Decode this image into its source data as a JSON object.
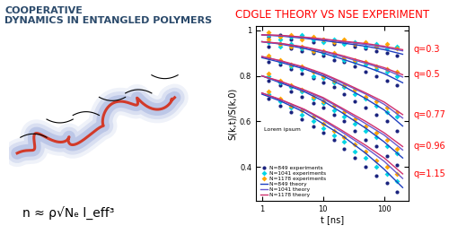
{
  "chart_data": {
    "type": "line",
    "title": "CDGLE THEORY VS NSE EXPERIMENT",
    "x_label": "t [ns]",
    "y_label": "S(k,t)/S(k,0)",
    "log": "x",
    "xlim": [
      0.8,
      250
    ],
    "xticks": [
      1,
      10,
      100
    ],
    "ylim": [
      0.25,
      1.02
    ],
    "yticks": [
      0.4,
      0.6,
      0.8,
      1
    ],
    "legend": "lower left",
    "annotations": [
      "Lorem ipsum"
    ],
    "groups": [
      "q=0.3",
      "q=0.5",
      "q=0.77",
      "q=0.96",
      "q=1.15"
    ],
    "series": [
      {
        "name": "N=849 experiments",
        "type": "scatter",
        "color": "#1a237e",
        "marker": "o",
        "x": [
          1.3,
          2,
          3,
          4.5,
          7,
          10,
          15,
          22,
          33,
          50,
          75,
          110,
          160
        ],
        "values": [
          [
            0.97,
            0.98,
            0.96,
            0.97,
            0.95,
            0.96,
            0.94,
            0.95,
            0.93,
            0.92,
            0.91,
            0.9,
            0.89
          ],
          [
            0.93,
            0.94,
            0.92,
            0.91,
            0.9,
            0.89,
            0.87,
            0.86,
            0.84,
            0.82,
            0.8,
            0.78,
            0.76
          ],
          [
            0.86,
            0.85,
            0.83,
            0.81,
            0.79,
            0.77,
            0.75,
            0.72,
            0.69,
            0.66,
            0.63,
            0.6,
            0.56
          ],
          [
            0.78,
            0.76,
            0.73,
            0.71,
            0.68,
            0.66,
            0.63,
            0.6,
            0.56,
            0.52,
            0.49,
            0.45,
            0.41
          ],
          [
            0.7,
            0.67,
            0.64,
            0.61,
            0.58,
            0.55,
            0.52,
            0.48,
            0.44,
            0.4,
            0.36,
            0.33,
            0.29
          ]
        ]
      },
      {
        "name": "N=1041 experiments",
        "type": "scatter",
        "color": "#00d5e5",
        "marker": "D",
        "x": [
          1.3,
          2,
          3,
          4.5,
          7,
          10,
          15,
          22,
          33,
          50,
          75,
          110,
          160
        ],
        "values": [
          [
            0.98,
            0.96,
            0.97,
            0.98,
            0.96,
            0.95,
            0.96,
            0.94,
            0.95,
            0.93,
            0.94,
            0.92,
            0.93
          ],
          [
            0.95,
            0.93,
            0.94,
            0.92,
            0.91,
            0.9,
            0.89,
            0.87,
            0.86,
            0.85,
            0.83,
            0.82,
            0.8
          ],
          [
            0.88,
            0.86,
            0.84,
            0.83,
            0.8,
            0.79,
            0.77,
            0.75,
            0.72,
            0.7,
            0.67,
            0.64,
            0.62
          ],
          [
            0.8,
            0.77,
            0.75,
            0.73,
            0.7,
            0.68,
            0.65,
            0.62,
            0.59,
            0.56,
            0.53,
            0.49,
            0.46
          ],
          [
            0.72,
            0.69,
            0.66,
            0.63,
            0.6,
            0.57,
            0.54,
            0.51,
            0.47,
            0.44,
            0.4,
            0.37,
            0.34
          ]
        ]
      },
      {
        "name": "N=1178 experiments",
        "type": "scatter",
        "color": "#ffa500",
        "marker": "D",
        "x": [
          1.3,
          2,
          3,
          4.5,
          7,
          10,
          15,
          22,
          33,
          50,
          75,
          110,
          160
        ],
        "values": [
          [
            0.99,
            0.97,
            0.98,
            0.96,
            0.97,
            0.96,
            0.95,
            0.96,
            0.94,
            0.95,
            0.93,
            0.94,
            0.92
          ],
          [
            0.96,
            0.94,
            0.93,
            0.93,
            0.91,
            0.91,
            0.9,
            0.88,
            0.87,
            0.86,
            0.84,
            0.83,
            0.82
          ],
          [
            0.89,
            0.87,
            0.85,
            0.84,
            0.82,
            0.8,
            0.78,
            0.76,
            0.74,
            0.71,
            0.69,
            0.66,
            0.64
          ],
          [
            0.81,
            0.78,
            0.76,
            0.74,
            0.71,
            0.69,
            0.67,
            0.64,
            0.61,
            0.58,
            0.55,
            0.52,
            0.48
          ],
          [
            0.73,
            0.7,
            0.67,
            0.65,
            0.62,
            0.59,
            0.56,
            0.53,
            0.5,
            0.47,
            0.43,
            0.4,
            0.37
          ]
        ]
      },
      {
        "name": "N=849 theory",
        "type": "line",
        "color": "#1f3fbf",
        "x": [
          1,
          2,
          5,
          10,
          20,
          50,
          100,
          200
        ],
        "values": [
          [
            0.98,
            0.975,
            0.965,
            0.955,
            0.945,
            0.93,
            0.915,
            0.895
          ],
          [
            0.95,
            0.94,
            0.92,
            0.9,
            0.875,
            0.84,
            0.81,
            0.77
          ],
          [
            0.88,
            0.86,
            0.83,
            0.8,
            0.76,
            0.7,
            0.65,
            0.58
          ],
          [
            0.8,
            0.77,
            0.73,
            0.69,
            0.64,
            0.57,
            0.51,
            0.44
          ],
          [
            0.72,
            0.69,
            0.64,
            0.59,
            0.54,
            0.46,
            0.39,
            0.31
          ]
        ]
      },
      {
        "name": "N=1041 theory",
        "type": "line",
        "color": "#6a5acd",
        "x": [
          1,
          2,
          5,
          10,
          20,
          50,
          100,
          200
        ],
        "values": [
          [
            0.98,
            0.977,
            0.968,
            0.96,
            0.95,
            0.938,
            0.925,
            0.91
          ],
          [
            0.95,
            0.942,
            0.925,
            0.907,
            0.885,
            0.855,
            0.83,
            0.795
          ],
          [
            0.885,
            0.865,
            0.835,
            0.807,
            0.77,
            0.72,
            0.675,
            0.615
          ],
          [
            0.8,
            0.775,
            0.735,
            0.7,
            0.655,
            0.59,
            0.54,
            0.475
          ],
          [
            0.725,
            0.695,
            0.65,
            0.605,
            0.555,
            0.485,
            0.425,
            0.35
          ]
        ]
      },
      {
        "name": "N=1178 theory",
        "type": "line",
        "color": "#d0306e",
        "x": [
          1,
          2,
          5,
          10,
          20,
          50,
          100,
          200
        ],
        "values": [
          [
            0.98,
            0.978,
            0.97,
            0.962,
            0.953,
            0.942,
            0.93,
            0.915
          ],
          [
            0.95,
            0.943,
            0.927,
            0.91,
            0.89,
            0.86,
            0.836,
            0.805
          ],
          [
            0.885,
            0.867,
            0.838,
            0.81,
            0.775,
            0.725,
            0.685,
            0.63
          ],
          [
            0.8,
            0.777,
            0.738,
            0.705,
            0.66,
            0.6,
            0.55,
            0.49
          ],
          [
            0.725,
            0.697,
            0.653,
            0.61,
            0.562,
            0.495,
            0.44,
            0.37
          ]
        ]
      }
    ]
  },
  "left_panel": {
    "title": "COOPERATIVE\nDYNAMICS IN ENTANGLED POLYMERS",
    "formula": "n ≈ ρ√Nₑ l_eff³"
  }
}
